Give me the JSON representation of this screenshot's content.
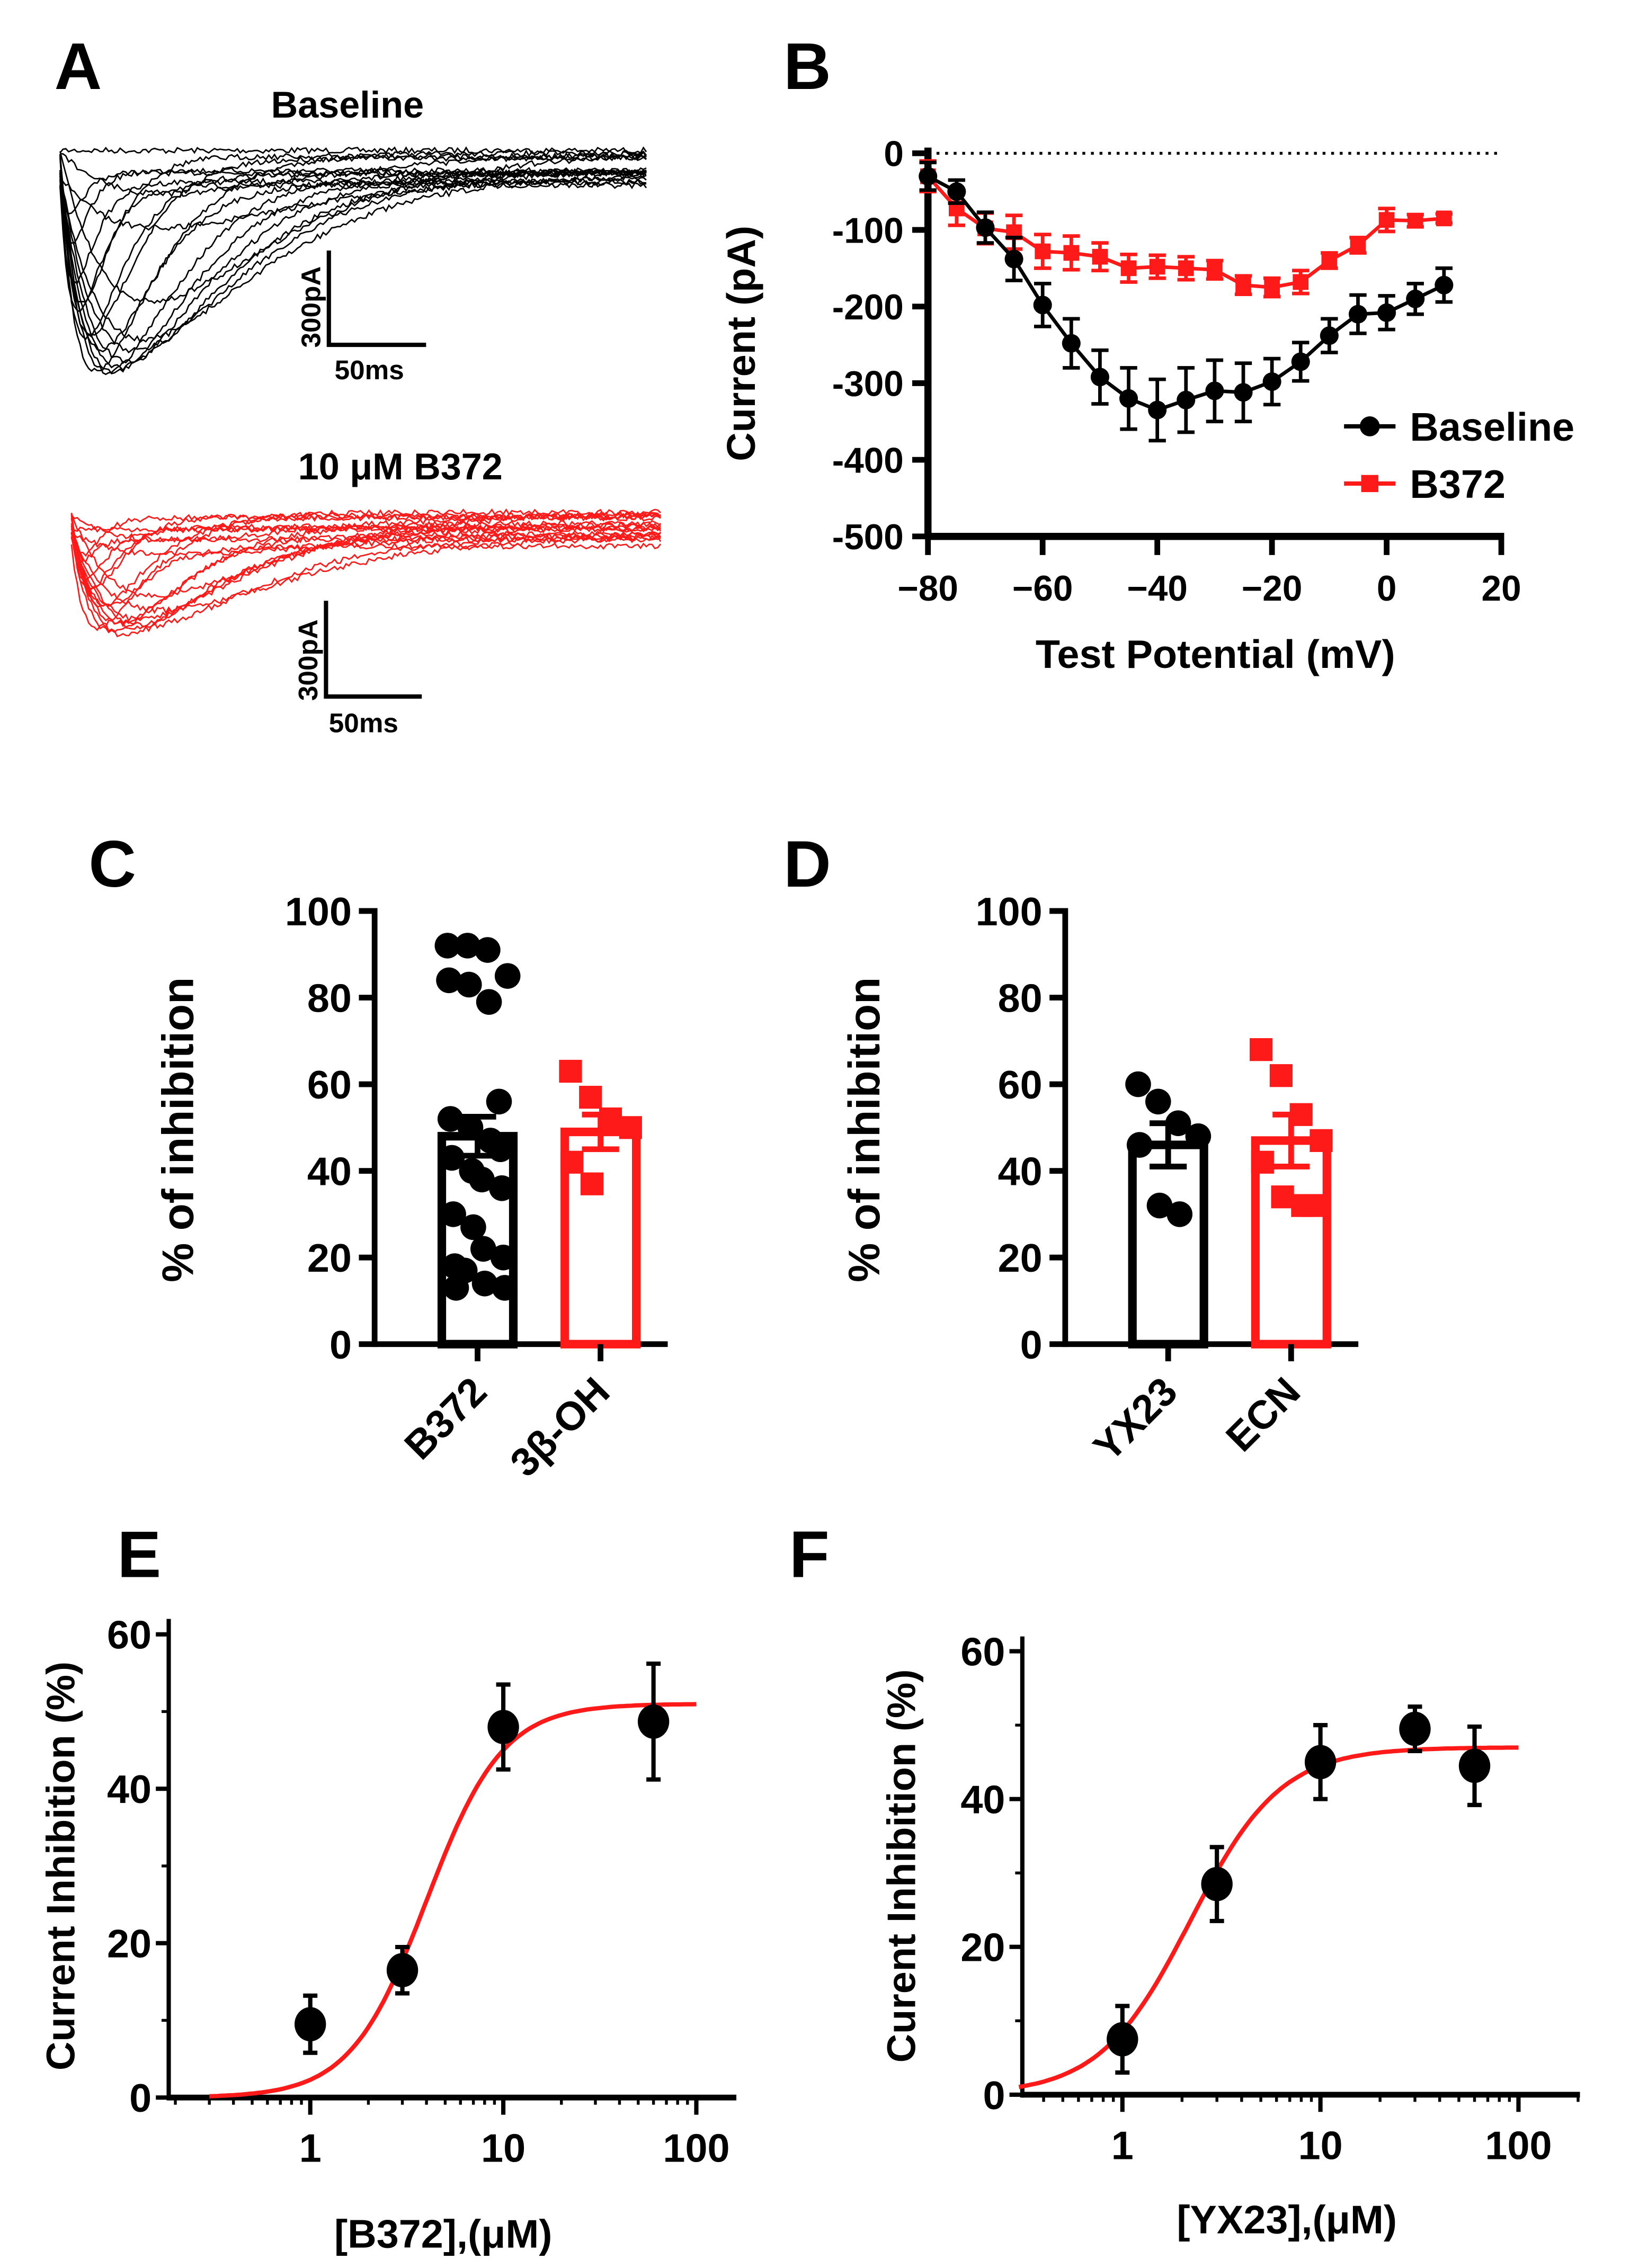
{
  "colors": {
    "baseline": "#000000",
    "drug": "#ff1a1a"
  },
  "chart_data": [
    {
      "panel": "A",
      "type": "line",
      "title_baseline": "Baseline",
      "title_drug": "10 μM B372",
      "scale_bar_current": "300pA",
      "scale_bar_time": "50ms",
      "sweeps": 19
    },
    {
      "panel": "B",
      "type": "line",
      "xlabel": "Test Potential (mV)",
      "ylabel": "Current (pA)",
      "xlim": [
        -80,
        20
      ],
      "ylim": [
        -500,
        0
      ],
      "x_ticks": [
        "−80",
        "−60",
        "−40",
        "−20",
        "0",
        "20"
      ],
      "x_tick_values": [
        -80,
        -60,
        -40,
        -20,
        0,
        20
      ],
      "y_ticks": [
        "0",
        "-100",
        "-200",
        "-300",
        "-400",
        "-500"
      ],
      "y_tick_values": [
        0,
        -100,
        -200,
        -300,
        -400,
        -500
      ],
      "legend": "right",
      "x": [
        -80,
        -75,
        -70,
        -65,
        -60,
        -55,
        -50,
        -45,
        -40,
        -35,
        -30,
        -25,
        -20,
        -15,
        -10,
        -5,
        0,
        5,
        10
      ],
      "series": [
        {
          "name": "Baseline",
          "marker": "circle",
          "values": [
            -30,
            -50,
            -97,
            -138,
            -198,
            -248,
            -292,
            -320,
            -335,
            -322,
            -310,
            -312,
            -298,
            -272,
            -238,
            -210,
            -208,
            -190,
            -172
          ],
          "errors": [
            18,
            15,
            20,
            28,
            28,
            32,
            35,
            40,
            40,
            42,
            40,
            38,
            30,
            25,
            22,
            25,
            22,
            20,
            22
          ]
        },
        {
          "name": "B372",
          "marker": "square",
          "values": [
            -30,
            -72,
            -98,
            -103,
            -128,
            -130,
            -135,
            -150,
            -148,
            -150,
            -152,
            -172,
            -175,
            -168,
            -140,
            -120,
            -87,
            -88,
            -85
          ],
          "errors": [
            20,
            22,
            20,
            22,
            22,
            22,
            18,
            18,
            15,
            15,
            12,
            12,
            12,
            15,
            10,
            10,
            15,
            8,
            6
          ]
        }
      ]
    },
    {
      "panel": "C",
      "type": "bar",
      "ylabel": "% of inhibition",
      "ylim": [
        0,
        100
      ],
      "y_ticks": [
        "0",
        "20",
        "40",
        "60",
        "80",
        "100"
      ],
      "y_tick_values": [
        0,
        20,
        40,
        60,
        80,
        100
      ],
      "categories": [
        "B372",
        "3β-OH"
      ],
      "values": [
        48,
        49
      ],
      "errors": [
        4.5,
        4
      ],
      "points": [
        [
          92,
          92,
          91,
          85,
          84,
          83,
          79,
          56,
          52,
          50,
          47,
          45,
          43,
          40,
          38,
          36,
          30,
          27,
          22,
          20,
          18,
          17,
          14,
          13,
          13
        ],
        [
          63,
          57,
          52,
          50,
          42,
          37
        ]
      ]
    },
    {
      "panel": "D",
      "type": "bar",
      "ylabel": "% of inhibition",
      "ylim": [
        0,
        100
      ],
      "y_ticks": [
        "0",
        "20",
        "40",
        "60",
        "80",
        "100"
      ],
      "y_tick_values": [
        0,
        20,
        40,
        60,
        80,
        100
      ],
      "categories": [
        "YX23",
        "ECN"
      ],
      "values": [
        46,
        47
      ],
      "errors": [
        5,
        6
      ],
      "points": [
        [
          60,
          56,
          51,
          48,
          46,
          32,
          30
        ],
        [
          68,
          62,
          53,
          47,
          42,
          34,
          32,
          32
        ]
      ]
    },
    {
      "panel": "E",
      "type": "scatter",
      "xlabel": "[B372],(μM)",
      "ylabel": "Current Inhibition (%)",
      "xscale": "log",
      "ylim": [
        0,
        60
      ],
      "x_ticks": [
        "1",
        "10",
        "100"
      ],
      "x_tick_values": [
        1,
        10,
        100
      ],
      "y_ticks": [
        "0",
        "20",
        "40",
        "60"
      ],
      "y_tick_values": [
        0,
        20,
        40,
        60
      ],
      "x": [
        1,
        3,
        10,
        60
      ],
      "values": [
        9.5,
        16.5,
        48,
        48.7
      ],
      "errors": [
        3.7,
        3,
        5.5,
        7.5
      ],
      "fit": {
        "top": 51,
        "ic50": 4,
        "hill": 2.2,
        "range": [
          0.3,
          100
        ]
      }
    },
    {
      "panel": "F",
      "type": "scatter",
      "xlabel": "[YX23],(μM)",
      "ylabel": "Curent Inhibition (%)",
      "xscale": "log",
      "ylim": [
        0,
        60
      ],
      "x_ticks": [
        "1",
        "10",
        "100"
      ],
      "x_tick_values": [
        1,
        10,
        100
      ],
      "y_ticks": [
        "0",
        "20",
        "40",
        "60"
      ],
      "y_tick_values": [
        0,
        20,
        40,
        60
      ],
      "x": [
        1,
        3,
        10,
        30,
        60
      ],
      "values": [
        7.5,
        28.5,
        45,
        49.5,
        44.5
      ],
      "errors": [
        4.5,
        5,
        5,
        3,
        5.3
      ],
      "fit": {
        "top": 47,
        "ic50": 2.2,
        "hill": 1.9,
        "range": [
          0.3,
          100
        ]
      }
    }
  ],
  "panel_labels": [
    "A",
    "B",
    "C",
    "D",
    "E",
    "F"
  ]
}
